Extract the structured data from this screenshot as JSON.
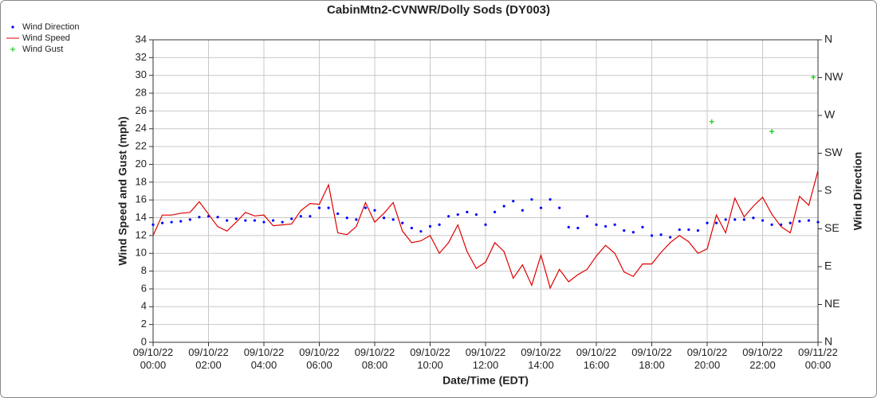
{
  "chart_data": {
    "type": "line",
    "title": "CabinMtn2-CVNWR/Dolly Sods (DY003)",
    "x_label": "Date/Time (EDT)",
    "y_label": "Wind Speed and Gust (mph)",
    "y2_label": "Wind Direction",
    "x": [
      "09/10/22 00:00",
      "09/10/22 00:20",
      "09/10/22 00:40",
      "09/10/22 01:00",
      "09/10/22 01:20",
      "09/10/22 01:40",
      "09/10/22 02:00",
      "09/10/22 02:20",
      "09/10/22 02:40",
      "09/10/22 03:00",
      "09/10/22 03:20",
      "09/10/22 03:40",
      "09/10/22 04:00",
      "09/10/22 04:20",
      "09/10/22 04:40",
      "09/10/22 05:00",
      "09/10/22 05:20",
      "09/10/22 05:40",
      "09/10/22 06:00",
      "09/10/22 06:20",
      "09/10/22 06:40",
      "09/10/22 07:00",
      "09/10/22 07:20",
      "09/10/22 07:40",
      "09/10/22 08:00",
      "09/10/22 08:20",
      "09/10/22 08:40",
      "09/10/22 09:00",
      "09/10/22 09:20",
      "09/10/22 09:40",
      "09/10/22 10:00",
      "09/10/22 10:20",
      "09/10/22 10:40",
      "09/10/22 11:00",
      "09/10/22 11:20",
      "09/10/22 11:40",
      "09/10/22 12:00",
      "09/10/22 12:20",
      "09/10/22 12:40",
      "09/10/22 13:00",
      "09/10/22 13:20",
      "09/10/22 13:40",
      "09/10/22 14:00",
      "09/10/22 14:20",
      "09/10/22 14:40",
      "09/10/22 15:00",
      "09/10/22 15:20",
      "09/10/22 15:40",
      "09/10/22 16:00",
      "09/10/22 16:20",
      "09/10/22 16:40",
      "09/10/22 17:00",
      "09/10/22 17:20",
      "09/10/22 17:40",
      "09/10/22 18:00",
      "09/10/22 18:20",
      "09/10/22 18:40",
      "09/10/22 19:00",
      "09/10/22 19:20",
      "09/10/22 19:40",
      "09/10/22 20:00",
      "09/10/22 20:20",
      "09/10/22 20:40",
      "09/10/22 21:00",
      "09/10/22 21:20",
      "09/10/22 21:40",
      "09/10/22 22:00",
      "09/10/22 22:20",
      "09/10/22 22:40",
      "09/10/22 23:00",
      "09/10/22 23:20",
      "09/10/22 23:40",
      "09/11/22 00:00"
    ],
    "series": [
      {
        "name": "Wind Direction",
        "color": "#0000ff",
        "style": "dots",
        "axis": "y2",
        "values": [
          140,
          142,
          143,
          144,
          146,
          149,
          150,
          149,
          145,
          147,
          145,
          145,
          143,
          145,
          143,
          147,
          150,
          150,
          160,
          160,
          153,
          148,
          146,
          160,
          157,
          148,
          146,
          142,
          136,
          132,
          138,
          140,
          150,
          152,
          155,
          152,
          140,
          155,
          162,
          168,
          157,
          170,
          160,
          170,
          160,
          137,
          136,
          150,
          140,
          138,
          140,
          133,
          131,
          137,
          127,
          128,
          125,
          134,
          134,
          133,
          142,
          142,
          146,
          146,
          146,
          148,
          145,
          140,
          140,
          142,
          144,
          145,
          143
        ]
      },
      {
        "name": "Wind Speed",
        "color": "#e00000",
        "style": "line",
        "values": [
          12.0,
          14.3,
          14.3,
          14.5,
          14.6,
          15.8,
          14.4,
          13.0,
          12.5,
          13.5,
          14.6,
          14.2,
          14.3,
          13.1,
          13.2,
          13.3,
          14.8,
          15.6,
          15.5,
          17.7,
          12.3,
          12.1,
          13.0,
          15.7,
          13.5,
          14.5,
          15.7,
          12.5,
          11.2,
          11.4,
          12.0,
          10.0,
          11.2,
          13.2,
          10.2,
          8.3,
          9.0,
          11.2,
          10.2,
          7.2,
          8.7,
          6.4,
          9.8,
          6.1,
          8.2,
          6.8,
          7.6,
          8.2,
          9.7,
          10.9,
          10.0,
          7.9,
          7.4,
          8.8,
          8.8,
          10.1,
          11.2,
          12.0,
          11.3,
          10.0,
          10.5,
          14.3,
          12.3,
          16.2,
          14.1,
          15.3,
          16.3,
          14.4,
          13.0,
          12.3,
          16.4,
          15.4,
          19.3
        ]
      },
      {
        "name": "Wind Gust",
        "color": "#00cc00",
        "style": "plus",
        "x": [
          "09/10/22 20:10",
          "09/10/22 22:20",
          "09/10/22 23:50"
        ],
        "values": [
          24.8,
          23.7,
          29.8
        ]
      }
    ],
    "xlim": [
      "09/10/22 00:00",
      "09/11/22 00:00"
    ],
    "xticks": [
      "09/10/22 00:00",
      "09/10/22 02:00",
      "09/10/22 04:00",
      "09/10/22 06:00",
      "09/10/22 08:00",
      "09/10/22 10:00",
      "09/10/22 12:00",
      "09/10/22 14:00",
      "09/10/22 16:00",
      "09/10/22 18:00",
      "09/10/22 20:00",
      "09/10/22 22:00",
      "09/11/22 00:00"
    ],
    "ylim": [
      0,
      34
    ],
    "yticks": [
      0,
      2,
      4,
      6,
      8,
      10,
      12,
      14,
      16,
      18,
      20,
      22,
      24,
      26,
      28,
      30,
      32,
      34
    ],
    "y2lim": [
      0,
      360
    ],
    "y2ticks": [
      {
        "value": 0,
        "label": "N"
      },
      {
        "value": 45,
        "label": "NE"
      },
      {
        "value": 90,
        "label": "E"
      },
      {
        "value": 135,
        "label": "SE"
      },
      {
        "value": 180,
        "label": "S"
      },
      {
        "value": 225,
        "label": "SW"
      },
      {
        "value": 270,
        "label": "W"
      },
      {
        "value": 315,
        "label": "NW"
      },
      {
        "value": 360,
        "label": "N"
      }
    ],
    "grid": true,
    "legend": "top-left"
  }
}
